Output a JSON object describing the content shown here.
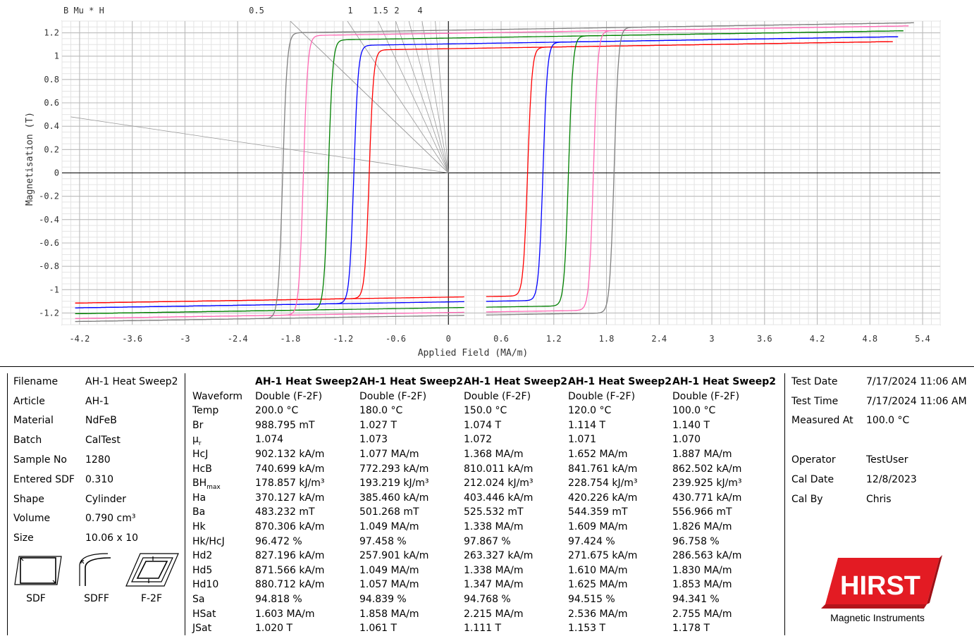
{
  "chart_data": {
    "type": "line",
    "title": "",
    "xlabel": "Applied Field (MA/m)",
    "ylabel": "Magnetisation (T)",
    "xlim": [
      -4.4,
      5.6
    ],
    "ylim": [
      -1.3,
      1.3
    ],
    "xticks": [
      "-4.2",
      "-3.6",
      "-3",
      "-2.4",
      "-1.8",
      "-1.2",
      "-0.6",
      "0",
      "0.6",
      "1.2",
      "1.8",
      "2.4",
      "3",
      "3.6",
      "4.2",
      "4.8",
      "5.4"
    ],
    "yticks": [
      "1.2",
      "1",
      "0.8",
      "0.6",
      "0.4",
      "0.2",
      "0",
      "-0.2",
      "-0.4",
      "-0.6",
      "-0.8",
      "-1",
      "-1.2"
    ],
    "grid": true,
    "top_labels": {
      "scale": "B  Mu  *  H",
      "lines": [
        "0.5",
        "1",
        "1.5",
        "2",
        "4"
      ]
    },
    "series": [
      {
        "temp": "200.0 °C",
        "color": "#ff0000",
        "hcj": 0.902,
        "jsat": 1.02,
        "js": 1.064
      },
      {
        "temp": "180.0 °C",
        "color": "#0000ff",
        "hcj": 1.077,
        "jsat": 1.061,
        "js": 1.105
      },
      {
        "temp": "150.0 °C",
        "color": "#008000",
        "hcj": 1.368,
        "jsat": 1.111,
        "js": 1.155
      },
      {
        "temp": "120.0 °C",
        "color": "#ff69b4",
        "hcj": 1.652,
        "jsat": 1.153,
        "js": 1.196
      },
      {
        "temp": "100.0 °C",
        "color": "#808080",
        "hcj": 1.887,
        "jsat": 1.178,
        "js": 1.222
      }
    ]
  },
  "sample_info": [
    {
      "label": "Filename",
      "value": "AH-1 Heat Sweep2"
    },
    {
      "label": "Article",
      "value": "AH-1"
    },
    {
      "label": "Material",
      "value": "NdFeB"
    },
    {
      "label": "Batch",
      "value": "CalTest"
    },
    {
      "label": "Sample No",
      "value": "1280"
    },
    {
      "label": "Entered SDF",
      "value": "0.310"
    },
    {
      "label": "Shape",
      "value": "Cylinder"
    },
    {
      "label": "Volume",
      "value": "0.790 cm³"
    },
    {
      "label": "Size",
      "value": "10.06 x 10"
    }
  ],
  "icons": [
    {
      "name": "sdf-icon",
      "label": "SDF"
    },
    {
      "name": "sdff-icon",
      "label": "SDFF"
    },
    {
      "name": "f2f-icon",
      "label": "F-2F"
    }
  ],
  "results": {
    "headers": [
      "AH-1 Heat Sweep2",
      "AH-1 Heat Sweep2",
      "AH-1 Heat Sweep2",
      "AH-1 Heat Sweep2",
      "AH-1 Heat Sweep2"
    ],
    "rows": [
      {
        "label": "Waveform",
        "values": [
          "Double (F-2F)",
          "Double (F-2F)",
          "Double (F-2F)",
          "Double (F-2F)",
          "Double (F-2F)"
        ]
      },
      {
        "label": "Temp",
        "values": [
          "200.0 °C",
          "180.0 °C",
          "150.0 °C",
          "120.0 °C",
          "100.0 °C"
        ]
      },
      {
        "label": "Br",
        "values": [
          "988.795 mT",
          "1.027 T",
          "1.074 T",
          "1.114 T",
          "1.140 T"
        ]
      },
      {
        "label": "μr",
        "values": [
          "1.074",
          "1.073",
          "1.072",
          "1.071",
          "1.070"
        ]
      },
      {
        "label": "HcJ",
        "values": [
          "902.132 kA/m",
          "1.077 MA/m",
          "1.368 MA/m",
          "1.652 MA/m",
          "1.887 MA/m"
        ]
      },
      {
        "label": "HcB",
        "values": [
          "740.699 kA/m",
          "772.293 kA/m",
          "810.011 kA/m",
          "841.761 kA/m",
          "862.502 kA/m"
        ]
      },
      {
        "label": "BHmax",
        "values": [
          "178.857 kJ/m³",
          "193.219 kJ/m³",
          "212.024 kJ/m³",
          "228.754 kJ/m³",
          "239.925 kJ/m³"
        ]
      },
      {
        "label": "Ha",
        "values": [
          "370.127 kA/m",
          "385.460 kA/m",
          "403.446 kA/m",
          "420.226 kA/m",
          "430.771 kA/m"
        ]
      },
      {
        "label": "Ba",
        "values": [
          "483.232 mT",
          "501.268 mT",
          "525.532 mT",
          "544.359 mT",
          "556.966 mT"
        ]
      },
      {
        "label": "Hk",
        "values": [
          "870.306 kA/m",
          "1.049 MA/m",
          "1.338 MA/m",
          "1.609 MA/m",
          "1.826 MA/m"
        ]
      },
      {
        "label": "Hk/HcJ",
        "values": [
          "96.472 %",
          "97.458 %",
          "97.867 %",
          "97.424 %",
          "96.758 %"
        ]
      },
      {
        "label": "Hd2",
        "values": [
          "827.196 kA/m",
          "257.901 kA/m",
          "263.327 kA/m",
          "271.675 kA/m",
          "286.563 kA/m"
        ]
      },
      {
        "label": "Hd5",
        "values": [
          "871.566 kA/m",
          "1.049 MA/m",
          "1.338 MA/m",
          "1.610 MA/m",
          "1.830 MA/m"
        ]
      },
      {
        "label": "Hd10",
        "values": [
          "880.712 kA/m",
          "1.057 MA/m",
          "1.347 MA/m",
          "1.625 MA/m",
          "1.853 MA/m"
        ]
      },
      {
        "label": "Sa",
        "values": [
          "94.818 %",
          "94.839 %",
          "94.768 %",
          "94.515 %",
          "94.341 %"
        ]
      },
      {
        "label": "HSat",
        "values": [
          "1.603 MA/m",
          "1.858 MA/m",
          "2.215 MA/m",
          "2.536 MA/m",
          "2.755 MA/m"
        ]
      },
      {
        "label": "JSat",
        "values": [
          "1.020 T",
          "1.061 T",
          "1.111 T",
          "1.153 T",
          "1.178 T"
        ]
      }
    ]
  },
  "test_info": [
    {
      "label": "Test Date",
      "value": "7/17/2024 11:06 AM"
    },
    {
      "label": "Test Time",
      "value": "7/17/2024 11:06 AM"
    },
    {
      "label": "Measured At",
      "value": "100.0 °C"
    },
    {
      "label": "",
      "value": ""
    },
    {
      "label": "Operator",
      "value": "TestUser"
    },
    {
      "label": "Cal Date",
      "value": "12/8/2023"
    },
    {
      "label": "Cal By",
      "value": "Chris"
    }
  ],
  "logo": {
    "brand": "HIRST",
    "tagline": "Magnetic Instruments",
    "color": "#e31b23"
  }
}
